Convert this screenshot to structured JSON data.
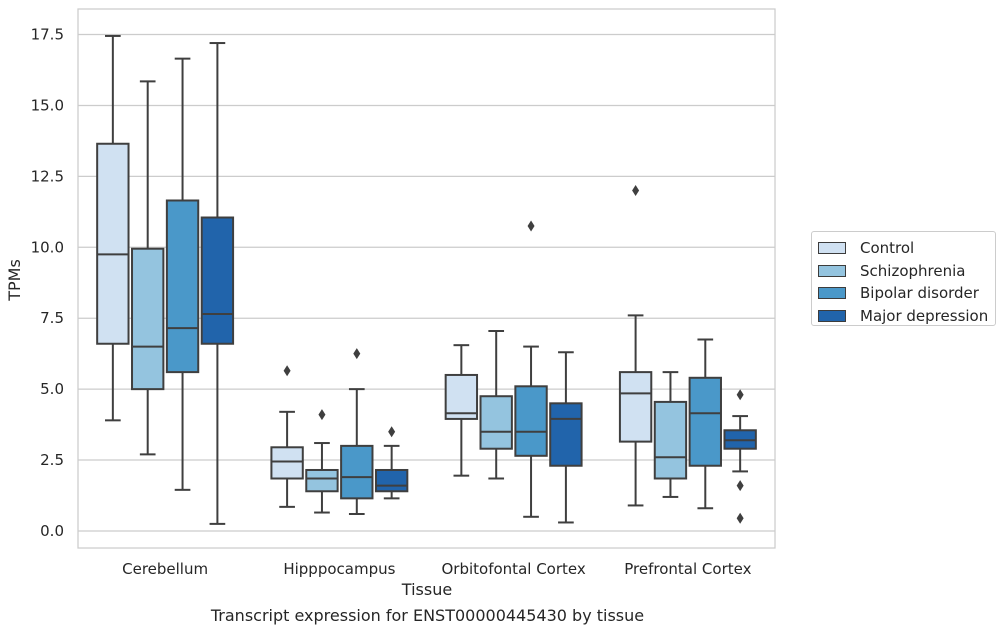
{
  "chart_data": {
    "type": "box",
    "xlabel": "Tissue",
    "ylabel": "TPMs",
    "caption": "Transcript expression for ENST00000445430 by tissue",
    "ylim": [
      -0.6,
      18.4
    ],
    "yticks": [
      0.0,
      2.5,
      5.0,
      7.5,
      10.0,
      12.5,
      15.0,
      17.5
    ],
    "ytick_labels": [
      "0.0",
      "2.5",
      "5.0",
      "7.5",
      "10.0",
      "12.5",
      "15.0",
      "17.5"
    ],
    "grid": "horizontal",
    "legend_position": "right",
    "categories": [
      "Cerebellum",
      "Hipppocampus",
      "Orbitofontal Cortex",
      "Prefrontal Cortex"
    ],
    "series": [
      {
        "name": "Control",
        "color": "#d0e1f2",
        "boxes": [
          {
            "whislo": 3.9,
            "q1": 6.6,
            "med": 9.75,
            "q3": 13.65,
            "whishi": 17.45,
            "fliers": []
          },
          {
            "whislo": 0.85,
            "q1": 1.85,
            "med": 2.45,
            "q3": 2.95,
            "whishi": 4.2,
            "fliers": [
              5.65
            ]
          },
          {
            "whislo": 1.95,
            "q1": 3.95,
            "med": 4.15,
            "q3": 5.5,
            "whishi": 6.55,
            "fliers": []
          },
          {
            "whislo": 0.9,
            "q1": 3.15,
            "med": 4.85,
            "q3": 5.6,
            "whishi": 7.6,
            "fliers": [
              12.0
            ]
          }
        ]
      },
      {
        "name": "Schizophrenia",
        "color": "#94c4df",
        "boxes": [
          {
            "whislo": 2.7,
            "q1": 5.0,
            "med": 6.5,
            "q3": 9.95,
            "whishi": 15.85,
            "fliers": []
          },
          {
            "whislo": 0.65,
            "q1": 1.4,
            "med": 1.85,
            "q3": 2.15,
            "whishi": 3.1,
            "fliers": [
              4.1
            ]
          },
          {
            "whislo": 1.85,
            "q1": 2.9,
            "med": 3.5,
            "q3": 4.75,
            "whishi": 7.05,
            "fliers": []
          },
          {
            "whislo": 1.2,
            "q1": 1.85,
            "med": 2.6,
            "q3": 4.55,
            "whishi": 5.6,
            "fliers": []
          }
        ]
      },
      {
        "name": "Bipolar disorder",
        "color": "#4a98c9",
        "boxes": [
          {
            "whislo": 1.45,
            "q1": 5.6,
            "med": 7.15,
            "q3": 11.65,
            "whishi": 16.65,
            "fliers": []
          },
          {
            "whislo": 0.6,
            "q1": 1.15,
            "med": 1.9,
            "q3": 3.0,
            "whishi": 5.0,
            "fliers": [
              6.25
            ]
          },
          {
            "whislo": 0.5,
            "q1": 2.65,
            "med": 3.5,
            "q3": 5.1,
            "whishi": 6.5,
            "fliers": [
              10.75
            ]
          },
          {
            "whislo": 0.8,
            "q1": 2.3,
            "med": 4.15,
            "q3": 5.4,
            "whishi": 6.75,
            "fliers": []
          }
        ]
      },
      {
        "name": "Major depression",
        "color": "#2164ab",
        "boxes": [
          {
            "whislo": 0.25,
            "q1": 6.6,
            "med": 7.65,
            "q3": 11.05,
            "whishi": 17.2,
            "fliers": []
          },
          {
            "whislo": 1.15,
            "q1": 1.4,
            "med": 1.6,
            "q3": 2.15,
            "whishi": 3.0,
            "fliers": [
              3.5
            ]
          },
          {
            "whislo": 0.3,
            "q1": 2.3,
            "med": 3.95,
            "q3": 4.5,
            "whishi": 6.3,
            "fliers": []
          },
          {
            "whislo": 2.1,
            "q1": 2.9,
            "med": 3.2,
            "q3": 3.55,
            "whishi": 4.05,
            "fliers": [
              4.8,
              1.6,
              0.45
            ]
          }
        ]
      }
    ]
  }
}
